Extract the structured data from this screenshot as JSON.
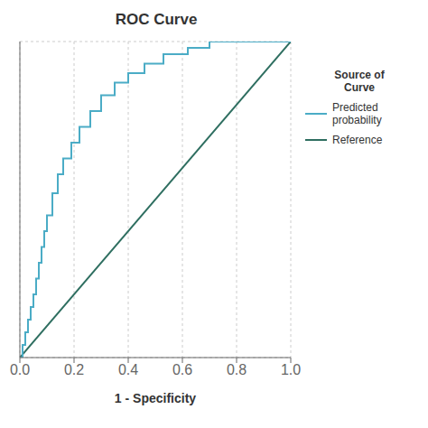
{
  "chart_data": {
    "type": "line",
    "title": "ROC Curve",
    "x_label": "1 - Specificity",
    "xlim": [
      0.0,
      1.0
    ],
    "ylim": [
      0.0,
      1.0
    ],
    "xticks": [
      {
        "value": 0.0,
        "label": "0.0"
      },
      0.2,
      0.4,
      0.6,
      0.8,
      {
        "value": 1.0,
        "label": "1.0"
      }
    ],
    "yticks": [
      0.0,
      0.2,
      0.4,
      0.6,
      0.8,
      1.0
    ],
    "grid": true,
    "tick_labels": "x",
    "legend": "right",
    "legend_title": "Source of\nCurve",
    "series": [
      {
        "name": "Predicted\nprobability",
        "color": "#4BACC6",
        "x": [
          0.0,
          0.01,
          0.01,
          0.02,
          0.02,
          0.03,
          0.03,
          0.04,
          0.04,
          0.05,
          0.05,
          0.06,
          0.06,
          0.07,
          0.07,
          0.08,
          0.08,
          0.09,
          0.09,
          0.1,
          0.1,
          0.12,
          0.12,
          0.14,
          0.14,
          0.16,
          0.16,
          0.19,
          0.19,
          0.22,
          0.22,
          0.26,
          0.26,
          0.3,
          0.3,
          0.35,
          0.35,
          0.4,
          0.4,
          0.46,
          0.46,
          0.53,
          0.53,
          0.62,
          0.62,
          0.7,
          0.7,
          1.0
        ],
        "values": [
          0.0,
          0.0,
          0.04,
          0.04,
          0.08,
          0.08,
          0.12,
          0.12,
          0.16,
          0.16,
          0.2,
          0.2,
          0.25,
          0.25,
          0.3,
          0.3,
          0.35,
          0.35,
          0.4,
          0.4,
          0.45,
          0.45,
          0.52,
          0.52,
          0.58,
          0.58,
          0.63,
          0.63,
          0.68,
          0.68,
          0.73,
          0.73,
          0.78,
          0.78,
          0.83,
          0.83,
          0.87,
          0.87,
          0.9,
          0.9,
          0.93,
          0.93,
          0.96,
          0.96,
          0.98,
          0.98,
          1.0,
          1.0
        ]
      },
      {
        "name": "Reference",
        "color": "#2E6E60",
        "x": [
          0,
          1
        ],
        "values": [
          0,
          1
        ]
      }
    ]
  }
}
